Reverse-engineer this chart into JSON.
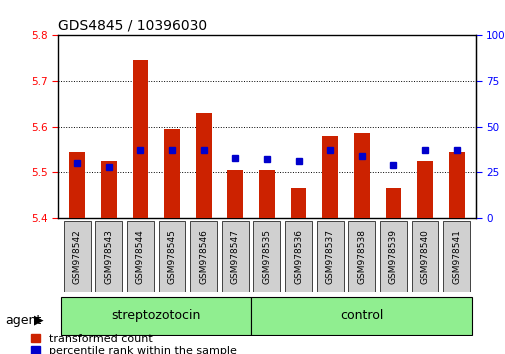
{
  "title": "GDS4845 / 10396030",
  "samples": [
    "GSM978542",
    "GSM978543",
    "GSM978544",
    "GSM978545",
    "GSM978546",
    "GSM978547",
    "GSM978535",
    "GSM978536",
    "GSM978537",
    "GSM978538",
    "GSM978539",
    "GSM978540",
    "GSM978541"
  ],
  "red_values": [
    5.545,
    5.525,
    5.745,
    5.595,
    5.63,
    5.505,
    5.505,
    5.465,
    5.58,
    5.585,
    5.465,
    5.525,
    5.545
  ],
  "blue_pct": [
    30,
    28,
    37,
    37,
    37,
    33,
    32,
    31,
    37,
    34,
    29,
    37,
    37
  ],
  "groups": [
    {
      "label": "streptozotocin",
      "start": 0,
      "end": 6
    },
    {
      "label": "control",
      "start": 6,
      "end": 13
    }
  ],
  "group_label": "agent",
  "ylim_left": [
    5.4,
    5.8
  ],
  "ylim_right": [
    0,
    100
  ],
  "yticks_left": [
    5.4,
    5.5,
    5.6,
    5.7,
    5.8
  ],
  "yticks_right": [
    0,
    25,
    50,
    75,
    100
  ],
  "bar_bottom": 5.4,
  "bar_color": "#CC2200",
  "dot_color": "#0000CC",
  "group_color": "#90EE90",
  "tick_bg_color": "#D0D0D0",
  "legend_red": "transformed count",
  "legend_blue": "percentile rank within the sample",
  "title_fontsize": 10,
  "tick_fontsize": 7.5,
  "sample_fontsize": 6.5,
  "group_fontsize": 9,
  "legend_fontsize": 8
}
